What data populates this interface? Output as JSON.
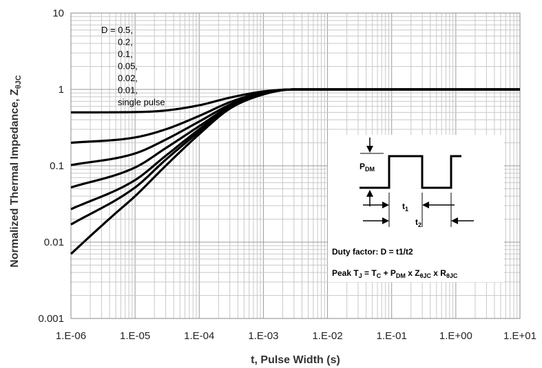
{
  "chart_data": {
    "type": "line",
    "title": "",
    "xlabel": "t, Pulse Width (s)",
    "ylabel": {
      "main": "Normalized Thermal Impedance, Z",
      "sub": "θJC"
    },
    "xscale": "log",
    "yscale": "log",
    "xlim": [
      1e-06,
      10
    ],
    "ylim": [
      0.001,
      10
    ],
    "grid": true,
    "x_tick_labels": [
      "1.E-06",
      "1.E-05",
      "1.E-04",
      "1.E-03",
      "1.E-02",
      "1.E-01",
      "1.E+00",
      "1.E+01"
    ],
    "y_tick_labels": [
      "0.001",
      "0.01",
      "0.1",
      "1",
      "10"
    ],
    "legend_lines": [
      "D = 0.5,",
      "0.2,",
      "0.1,",
      "0.05,",
      "0.02,",
      "0.01,",
      "single pulse"
    ],
    "series": [
      {
        "name": "D = 0.5",
        "points": [
          [
            1e-06,
            0.5
          ],
          [
            1e-05,
            0.505
          ],
          [
            3e-05,
            0.53
          ],
          [
            0.0001,
            0.62
          ],
          [
            0.0003,
            0.78
          ],
          [
            0.001,
            0.94
          ],
          [
            0.003,
            1.0
          ],
          [
            0.01,
            1.0
          ],
          [
            10,
            1.0
          ]
        ]
      },
      {
        "name": "D = 0.2",
        "points": [
          [
            1e-06,
            0.2
          ],
          [
            1e-05,
            0.235
          ],
          [
            3e-05,
            0.3
          ],
          [
            0.0001,
            0.45
          ],
          [
            0.0003,
            0.68
          ],
          [
            0.001,
            0.92
          ],
          [
            0.003,
            1.0
          ],
          [
            0.01,
            1.0
          ],
          [
            10,
            1.0
          ]
        ]
      },
      {
        "name": "D = 0.1",
        "points": [
          [
            1e-06,
            0.102
          ],
          [
            1e-05,
            0.145
          ],
          [
            3e-05,
            0.22
          ],
          [
            0.0001,
            0.38
          ],
          [
            0.0003,
            0.63
          ],
          [
            0.001,
            0.9
          ],
          [
            0.003,
            1.0
          ],
          [
            0.01,
            1.0
          ],
          [
            10,
            1.0
          ]
        ]
      },
      {
        "name": "D = 0.05",
        "points": [
          [
            1e-06,
            0.052
          ],
          [
            1e-05,
            0.095
          ],
          [
            3e-05,
            0.17
          ],
          [
            0.0001,
            0.33
          ],
          [
            0.0003,
            0.6
          ],
          [
            0.001,
            0.89
          ],
          [
            0.003,
            1.0
          ],
          [
            0.01,
            1.0
          ],
          [
            10,
            1.0
          ]
        ]
      },
      {
        "name": "D = 0.02",
        "points": [
          [
            1e-06,
            0.027
          ],
          [
            1e-05,
            0.065
          ],
          [
            3e-05,
            0.135
          ],
          [
            0.0001,
            0.3
          ],
          [
            0.0003,
            0.58
          ],
          [
            0.001,
            0.88
          ],
          [
            0.003,
            1.0
          ],
          [
            0.01,
            1.0
          ],
          [
            10,
            1.0
          ]
        ]
      },
      {
        "name": "D = 0.01",
        "points": [
          [
            1e-06,
            0.017
          ],
          [
            1e-05,
            0.052
          ],
          [
            3e-05,
            0.12
          ],
          [
            0.0001,
            0.28
          ],
          [
            0.0003,
            0.57
          ],
          [
            0.001,
            0.87
          ],
          [
            0.003,
            1.0
          ],
          [
            0.01,
            1.0
          ],
          [
            10,
            1.0
          ]
        ]
      },
      {
        "name": "single pulse",
        "points": [
          [
            1e-06,
            0.007
          ],
          [
            2e-06,
            0.012
          ],
          [
            5e-06,
            0.024
          ],
          [
            1e-05,
            0.04
          ],
          [
            3e-05,
            0.1
          ],
          [
            0.0001,
            0.26
          ],
          [
            0.0003,
            0.56
          ],
          [
            0.001,
            0.86
          ],
          [
            0.003,
            1.0
          ],
          [
            0.01,
            1.0
          ],
          [
            10,
            1.0
          ]
        ]
      }
    ],
    "inset": {
      "p_dm_label": "P",
      "p_dm_sub": "DM",
      "t1_label": "t",
      "t1_sub": "1",
      "t2_label": "t",
      "t2_sub": "2",
      "duty_text": "Duty factor: D = t1/t2",
      "peak_formula": [
        {
          "t": "Peak T",
          "sub": false
        },
        {
          "t": "J",
          "sub": true
        },
        {
          "t": " = T",
          "sub": false
        },
        {
          "t": "C",
          "sub": true
        },
        {
          "t": " + P",
          "sub": false
        },
        {
          "t": "DM",
          "sub": true
        },
        {
          "t": " x Z",
          "sub": false
        },
        {
          "t": "θJC",
          "sub": true
        },
        {
          "t": " x R",
          "sub": false
        },
        {
          "t": "θJC",
          "sub": true
        }
      ]
    }
  }
}
